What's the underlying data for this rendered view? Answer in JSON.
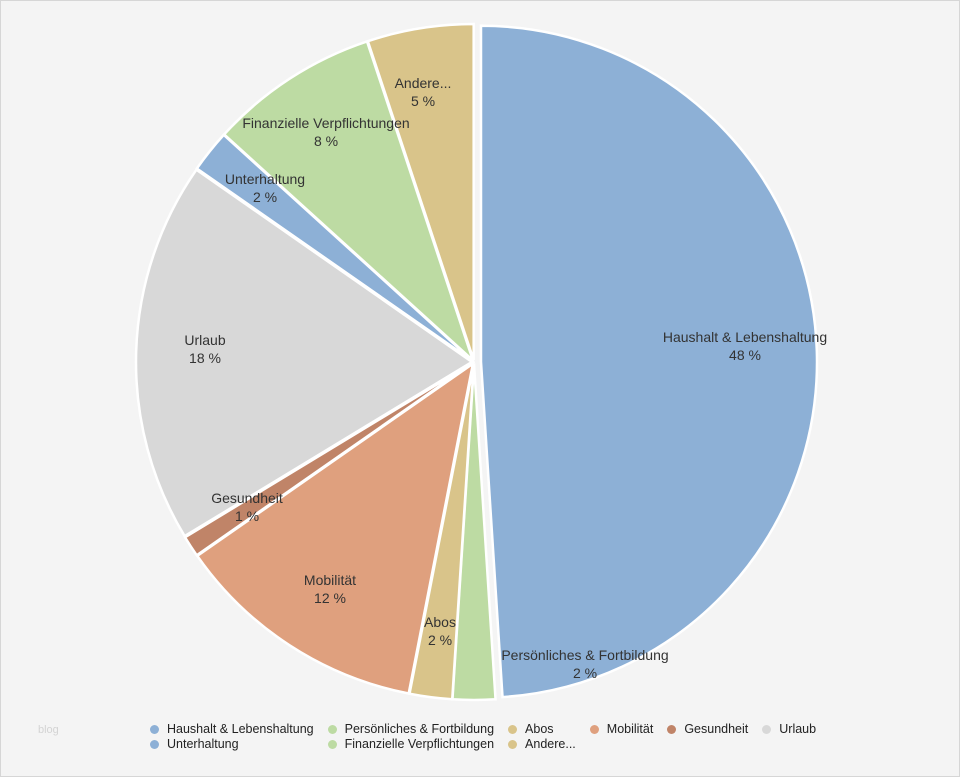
{
  "watermark": "blog",
  "chart_data": {
    "type": "pie",
    "title": "",
    "slices": [
      {
        "label": "Haushalt & Lebenshaltung",
        "value": 48,
        "display": "48 %",
        "color": "#8db0d6"
      },
      {
        "label": "Persönliches & Fortbildung",
        "value": 2,
        "display": "2 %",
        "color": "#bddba3"
      },
      {
        "label": "Abos",
        "value": 2,
        "display": "2 %",
        "color": "#d9c48a"
      },
      {
        "label": "Mobilität",
        "value": 12,
        "display": "12 %",
        "color": "#dfa07e"
      },
      {
        "label": "Gesundheit",
        "value": 1,
        "display": "1 %",
        "color": "#c08468"
      },
      {
        "label": "Urlaub",
        "value": 18,
        "display": "18 %",
        "color": "#d8d8d8"
      },
      {
        "label": "Unterhaltung",
        "value": 2,
        "display": "2 %",
        "color": "#8db0d6"
      },
      {
        "label": "Finanzielle Verpflichtungen",
        "value": 8,
        "display": "8 %",
        "color": "#bddba3"
      },
      {
        "label": "Andere...",
        "value": 5,
        "display": "5 %",
        "color": "#d9c48a"
      }
    ],
    "legend_placement": "bottom",
    "legend": [
      "Haushalt & Lebenshaltung",
      "Persönliches & Fortbildung",
      "Abos",
      "Mobilität",
      "Gesundheit",
      "Urlaub",
      "Unterhaltung",
      "Finanzielle Verpflichtungen",
      "Andere..."
    ]
  }
}
